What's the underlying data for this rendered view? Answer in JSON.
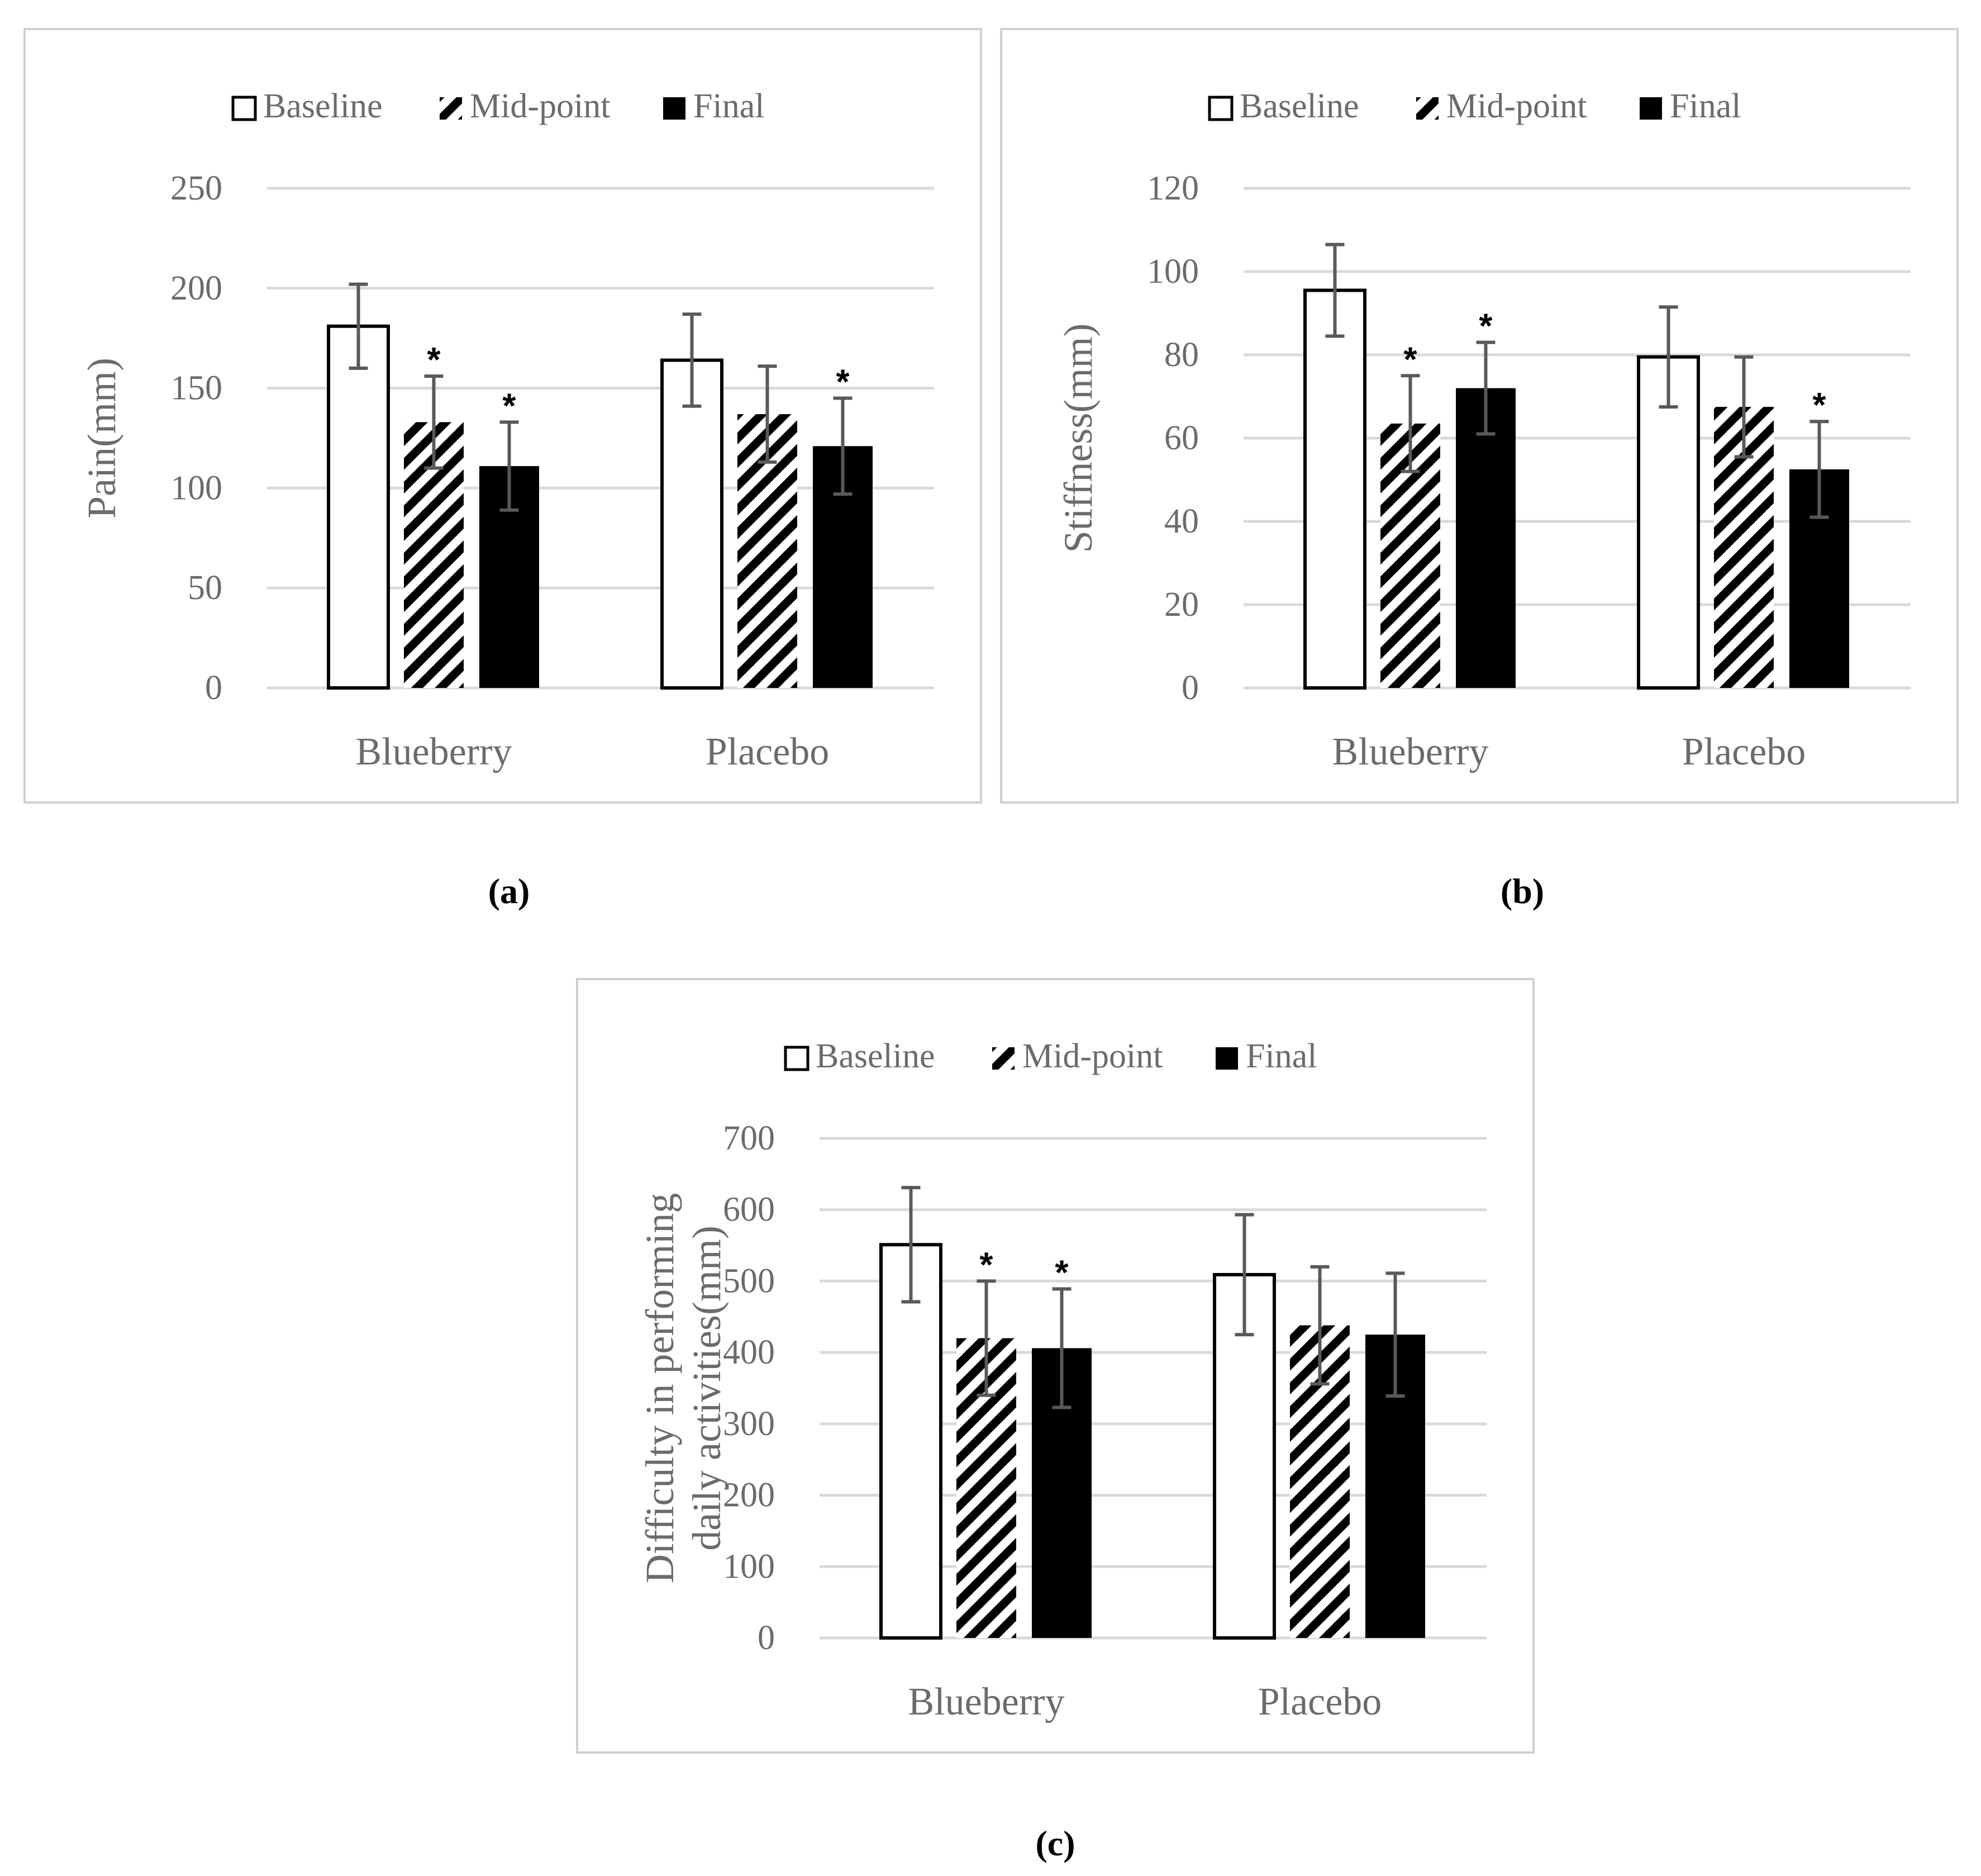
{
  "colors": {
    "baseline_fill": "#ffffff",
    "final_fill": "#000000",
    "bar_outline": "#000000",
    "hatch": "#000000",
    "gridline": "#d9d9d9",
    "error_bar": "#595959",
    "text_gray": "#6b6b6b",
    "panel_border": "#d0d0d0"
  },
  "chart_data": [
    {
      "id": "a",
      "type": "bar",
      "caption": "(a)",
      "title": "",
      "xlabel": "",
      "ylabel": "Pain(mm)",
      "ylim": [
        0,
        250
      ],
      "yticks": [
        0,
        50,
        100,
        150,
        200,
        250
      ],
      "grid": true,
      "legend_position": "top-center",
      "categories": [
        "Blueberry",
        "Placebo"
      ],
      "series": [
        {
          "name": "Baseline",
          "pattern": "open",
          "values": [
            181,
            164
          ],
          "errors": [
            21,
            23
          ],
          "significant": [
            false,
            false
          ]
        },
        {
          "name": "Mid-point",
          "pattern": "hatched",
          "values": [
            133,
            137
          ],
          "errors": [
            23,
            24
          ],
          "significant": [
            true,
            false
          ]
        },
        {
          "name": "Final",
          "pattern": "solid",
          "values": [
            111,
            121
          ],
          "errors": [
            22,
            24
          ],
          "significant": [
            true,
            true
          ]
        }
      ],
      "annotation": "*"
    },
    {
      "id": "b",
      "type": "bar",
      "caption": "(b)",
      "title": "",
      "xlabel": "",
      "ylabel": "Stiffness(mm)",
      "ylim": [
        0,
        120
      ],
      "yticks": [
        0,
        20,
        40,
        60,
        80,
        100,
        120
      ],
      "grid": true,
      "legend_position": "top-center",
      "categories": [
        "Blueberry",
        "Placebo"
      ],
      "series": [
        {
          "name": "Baseline",
          "pattern": "open",
          "values": [
            95.5,
            79.5
          ],
          "errors": [
            11,
            12
          ],
          "significant": [
            false,
            false
          ]
        },
        {
          "name": "Mid-point",
          "pattern": "hatched",
          "values": [
            63.5,
            67.5
          ],
          "errors": [
            11.5,
            12
          ],
          "significant": [
            true,
            false
          ]
        },
        {
          "name": "Final",
          "pattern": "solid",
          "values": [
            72,
            52.5
          ],
          "errors": [
            11,
            11.5
          ],
          "significant": [
            true,
            true
          ]
        }
      ],
      "annotation": "*"
    },
    {
      "id": "c",
      "type": "bar",
      "caption": "(c)",
      "title": "",
      "xlabel": "",
      "ylabel": "Difficulty in performing daily activities(mm)",
      "ylabel_lines": [
        "Difficulty in performing",
        "daily activities(mm)"
      ],
      "ylim": [
        0,
        700
      ],
      "yticks": [
        0,
        100,
        200,
        300,
        400,
        500,
        600,
        700
      ],
      "grid": true,
      "legend_position": "top-center",
      "categories": [
        "Blueberry",
        "Placebo"
      ],
      "series": [
        {
          "name": "Baseline",
          "pattern": "open",
          "values": [
            551,
            509
          ],
          "errors": [
            80,
            84
          ],
          "significant": [
            false,
            false
          ]
        },
        {
          "name": "Mid-point",
          "pattern": "hatched",
          "values": [
            420,
            438
          ],
          "errors": [
            80,
            82
          ],
          "significant": [
            true,
            false
          ]
        },
        {
          "name": "Final",
          "pattern": "solid",
          "values": [
            406,
            425
          ],
          "errors": [
            83,
            86
          ],
          "significant": [
            true,
            false
          ]
        }
      ],
      "annotation": "*"
    }
  ]
}
